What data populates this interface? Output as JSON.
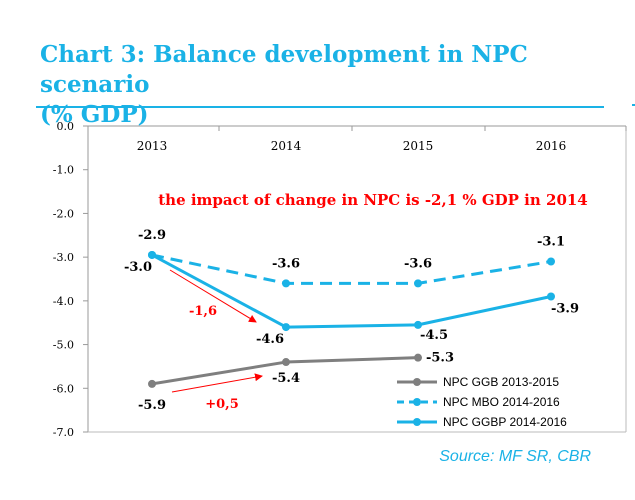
{
  "page": {
    "title_line1": "Chart 3: Balance development in NPC scenario",
    "title_line2": "(% GDP)",
    "source": "Source: MF SR, CBR"
  },
  "chart_data": {
    "type": "line",
    "title": "Chart 3: Balance development in NPC scenario (% GDP)",
    "categories": [
      "2013",
      "2014",
      "2015",
      "2016"
    ],
    "ylim": [
      -7.0,
      0.0
    ],
    "yticks": [
      "0.0",
      "-1.0",
      "-2.0",
      "-3.0",
      "-4.0",
      "-5.0",
      "-6.0",
      "-7.0"
    ],
    "x_axis_position": "top",
    "grid": false,
    "legend_position": "bottom-right",
    "series": [
      {
        "name": "NPC GGB 2013-2015",
        "color": "#7f7f7f",
        "style": "solid",
        "values": [
          -5.9,
          -5.4,
          -5.3,
          null
        ],
        "labels": [
          "-5.9",
          "-5.4",
          "-5.3",
          ""
        ]
      },
      {
        "name": "NPC MBO 2014-2016",
        "color": "#1ab2e6",
        "style": "dashed",
        "values": [
          -2.95,
          -3.6,
          -3.6,
          -3.1
        ],
        "labels": [
          "-2.9",
          "-3.6",
          "-3.6",
          "-3.1"
        ]
      },
      {
        "name": "NPC GGBP 2014-2016",
        "color": "#1ab2e6",
        "style": "solid",
        "values": [
          -2.95,
          -4.6,
          -4.55,
          -3.9
        ],
        "labels": [
          "-3.0",
          "-4.6",
          "-4.5",
          "-3.9"
        ]
      }
    ],
    "annotations": [
      {
        "text": "the impact of change in NPC is -2,1 % GDP in 2014",
        "color": "#ff0000"
      },
      {
        "text": "-1,6",
        "color": "#ff0000"
      },
      {
        "text": "+0,5",
        "color": "#ff0000"
      }
    ]
  }
}
